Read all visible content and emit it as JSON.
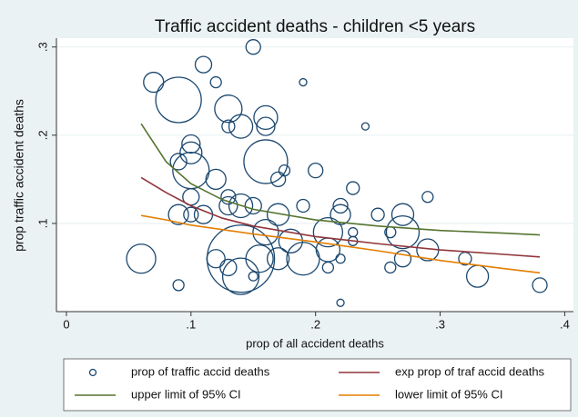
{
  "chart_data": {
    "type": "scatter",
    "title": "Traffic accident deaths - children <5 years",
    "x_label": "prop of all accident deaths",
    "y_label": "prop traffic accident deaths",
    "xlim": [
      -0.008,
      0.407
    ],
    "ylim": [
      0,
      0.31
    ],
    "xticks": [
      0,
      {
        "value": 0.1,
        "label": ".1"
      },
      {
        "value": 0.2,
        "label": ".2"
      },
      {
        "value": 0.3,
        "label": ".3"
      },
      {
        "value": 0.4,
        "label": ".4"
      }
    ],
    "yticks": [
      {
        "value": 0.1,
        "label": ".1"
      },
      {
        "value": 0.2,
        "label": ".2"
      },
      {
        "value": 0.3,
        "label": ".3"
      }
    ],
    "grid": true,
    "legend": "bottom",
    "series": [
      {
        "name": "prop of traffic accid deaths",
        "type": "scatter",
        "color": "#1a476f",
        "x": [
          0.07,
          0.09,
          0.11,
          0.12,
          0.13,
          0.15,
          0.14,
          0.13,
          0.16,
          0.16,
          0.19,
          0.24,
          0.1,
          0.1,
          0.1,
          0.09,
          0.16,
          0.175,
          0.17,
          0.2,
          0.12,
          0.1,
          0.13,
          0.14,
          0.15,
          0.13,
          0.09,
          0.1,
          0.11,
          0.17,
          0.19,
          0.22,
          0.23,
          0.22,
          0.21,
          0.23,
          0.23,
          0.25,
          0.26,
          0.27,
          0.27,
          0.29,
          0.29,
          0.26,
          0.27,
          0.32,
          0.33,
          0.38,
          0.22,
          0.22,
          0.21,
          0.06,
          0.09,
          0.14,
          0.14,
          0.15,
          0.16,
          0.155,
          0.17,
          0.18,
          0.19,
          0.21,
          0.12,
          0.13
        ],
        "values": [
          0.26,
          0.24,
          0.28,
          0.26,
          0.23,
          0.3,
          0.21,
          0.21,
          0.22,
          0.21,
          0.26,
          0.21,
          0.19,
          0.18,
          0.16,
          0.17,
          0.17,
          0.16,
          0.15,
          0.16,
          0.15,
          0.13,
          0.13,
          0.12,
          0.12,
          0.12,
          0.11,
          0.11,
          0.11,
          0.11,
          0.12,
          0.12,
          0.14,
          0.11,
          0.09,
          0.09,
          0.08,
          0.11,
          0.09,
          0.11,
          0.09,
          0.13,
          0.07,
          0.05,
          0.06,
          0.06,
          0.04,
          0.03,
          0.01,
          0.06,
          0.05,
          0.06,
          0.03,
          0.06,
          0.04,
          0.04,
          0.09,
          0.06,
          0.06,
          0.08,
          0.06,
          0.07,
          0.06,
          0.05
        ],
        "sizes": [
          121,
          625,
          81,
          36,
          225,
          64,
          169,
          49,
          169,
          100,
          16,
          16,
          100,
          144,
          400,
          81,
          576,
          36,
          64,
          64,
          121,
          81,
          64,
          169,
          81,
          100,
          121,
          64,
          100,
          144,
          49,
          64,
          49,
          121,
          256,
          25,
          25,
          49,
          36,
          144,
          324,
          36,
          144,
          36,
          81,
          49,
          144,
          64,
          16,
          25,
          36,
          256,
          36,
          1369,
          400,
          25,
          196,
          225,
          144,
          169,
          324,
          169,
          100,
          81
        ]
      },
      {
        "name": "exp prop of traf accid deaths",
        "type": "line",
        "color": "#90353b",
        "x": [
          0.06,
          0.08,
          0.1,
          0.125,
          0.15,
          0.2,
          0.25,
          0.3,
          0.35,
          0.38
        ],
        "values": [
          0.152,
          0.135,
          0.12,
          0.106,
          0.097,
          0.085,
          0.077,
          0.07,
          0.065,
          0.062
        ]
      },
      {
        "name": "upper limit of 95% CI",
        "type": "line",
        "color": "#55752f",
        "x": [
          0.06,
          0.08,
          0.1,
          0.125,
          0.15,
          0.2,
          0.25,
          0.3,
          0.35,
          0.38
        ],
        "values": [
          0.213,
          0.17,
          0.145,
          0.127,
          0.116,
          0.104,
          0.097,
          0.092,
          0.089,
          0.087
        ]
      },
      {
        "name": "lower limit of 95% CI",
        "type": "line",
        "color": "#e37e00",
        "x": [
          0.06,
          0.08,
          0.1,
          0.125,
          0.15,
          0.2,
          0.25,
          0.3,
          0.35,
          0.38
        ],
        "values": [
          0.109,
          0.104,
          0.098,
          0.093,
          0.088,
          0.079,
          0.069,
          0.058,
          0.049,
          0.044
        ]
      }
    ]
  }
}
